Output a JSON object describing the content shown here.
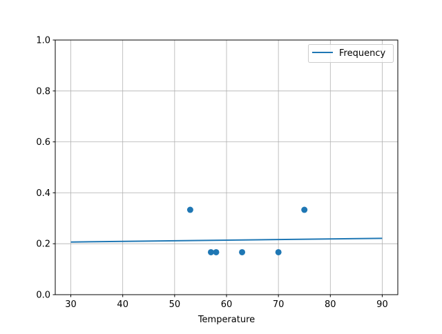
{
  "chart_data": {
    "type": "scatter",
    "title": "",
    "xlabel": "Temperature",
    "ylabel": "",
    "xlim": [
      27,
      93
    ],
    "ylim": [
      0,
      1
    ],
    "xticks": [
      30,
      40,
      50,
      60,
      70,
      80,
      90
    ],
    "yticks": [
      0.0,
      0.2,
      0.4,
      0.6,
      0.8,
      1.0
    ],
    "xtick_labels": [
      "30",
      "40",
      "50",
      "60",
      "70",
      "80",
      "90"
    ],
    "ytick_labels": [
      "0.0",
      "0.2",
      "0.4",
      "0.6",
      "0.8",
      "1.0"
    ],
    "grid": true,
    "legend_placement": "top-right",
    "color": "#1f77b4",
    "points": {
      "x": [
        53,
        57,
        58,
        63,
        70,
        75
      ],
      "y": [
        0.3333,
        0.1667,
        0.1667,
        0.1667,
        0.1667,
        0.3333
      ]
    },
    "series": [
      {
        "name": "Frequency",
        "type": "line",
        "x": [
          30,
          90
        ],
        "y": [
          0.2067,
          0.2213
        ]
      }
    ]
  }
}
